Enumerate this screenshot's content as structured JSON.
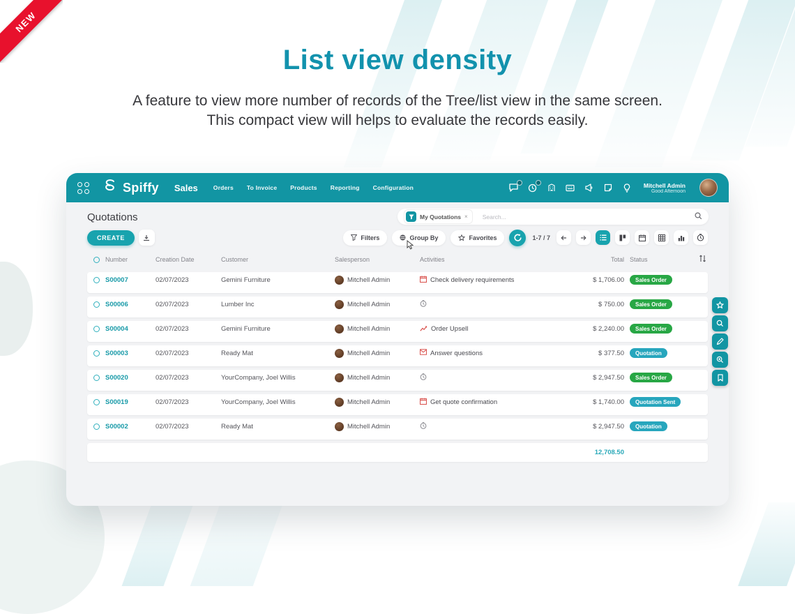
{
  "ribbon": {
    "label": "NEW"
  },
  "hero": {
    "title": "List view density",
    "desc1": "A feature to view more number of records of the Tree/list view in the same screen.",
    "desc2": "This compact view will helps to evaluate the records easily."
  },
  "app": {
    "header": {
      "brand": "Spiffy",
      "module": "Sales",
      "nav": [
        "Orders",
        "To Invoice",
        "Products",
        "Reporting",
        "Configuration"
      ],
      "icons": [
        "chat-icon",
        "clock-icon",
        "building-icon",
        "keyboard-icon",
        "announcement-icon",
        "note-icon",
        "bulb-icon"
      ],
      "user": {
        "name": "Mitchell Admin",
        "greeting": "Good Afternoon"
      }
    },
    "breadcrumb": {
      "title": "Quotations"
    },
    "search": {
      "filter_tag": "My Quotations",
      "filter_remove": "×",
      "placeholder": "Search..."
    },
    "toolbar": {
      "create_label": "CREATE",
      "filters_label": "Filters",
      "group_by_label": "Group By",
      "favorites_label": "Favorites",
      "pager": "1-7 / 7",
      "view_switcher": [
        "list-view",
        "kanban-view",
        "calendar-view",
        "pivot-view",
        "graph-view",
        "activity-view"
      ]
    },
    "table": {
      "headers": {
        "number": "Number",
        "date": "Creation Date",
        "customer": "Customer",
        "salesperson": "Salesperson",
        "activities": "Activities",
        "total": "Total",
        "status": "Status"
      },
      "rows": [
        {
          "number": "S00007",
          "date": "02/07/2023",
          "customer": "Gemini Furniture",
          "salesperson": "Mitchell Admin",
          "activity_icon": "calendar",
          "activity": "Check delivery requirements",
          "total": "$ 1,706.00",
          "status": "Sales Order",
          "status_color": "green"
        },
        {
          "number": "S00006",
          "date": "02/07/2023",
          "customer": "Lumber Inc",
          "salesperson": "Mitchell Admin",
          "activity_icon": "clock",
          "activity": "",
          "total": "$ 750.00",
          "status": "Sales Order",
          "status_color": "green"
        },
        {
          "number": "S00004",
          "date": "02/07/2023",
          "customer": "Gemini Furniture",
          "salesperson": "Mitchell Admin",
          "activity_icon": "chart",
          "activity": "Order Upsell",
          "total": "$ 2,240.00",
          "status": "Sales Order",
          "status_color": "green"
        },
        {
          "number": "S00003",
          "date": "02/07/2023",
          "customer": "Ready Mat",
          "salesperson": "Mitchell Admin",
          "activity_icon": "envelope",
          "activity": "Answer questions",
          "total": "$ 377.50",
          "status": "Quotation",
          "status_color": "teal"
        },
        {
          "number": "S00020",
          "date": "02/07/2023",
          "customer": "YourCompany, Joel Willis",
          "salesperson": "Mitchell Admin",
          "activity_icon": "clock",
          "activity": "",
          "total": "$ 2,947.50",
          "status": "Sales Order",
          "status_color": "green"
        },
        {
          "number": "S00019",
          "date": "02/07/2023",
          "customer": "YourCompany, Joel Willis",
          "salesperson": "Mitchell Admin",
          "activity_icon": "calendar",
          "activity": "Get quote confirmation",
          "total": "$ 1,740.00",
          "status": "Quotation Sent",
          "status_color": "teal"
        },
        {
          "number": "S00002",
          "date": "02/07/2023",
          "customer": "Ready Mat",
          "salesperson": "Mitchell Admin",
          "activity_icon": "clock",
          "activity": "",
          "total": "$ 2,947.50",
          "status": "Quotation",
          "status_color": "teal"
        }
      ],
      "footer_total": "12,708.50"
    },
    "side_buttons": [
      "star-fab",
      "search-fab",
      "edit-fab",
      "zoom-fab",
      "bookmark-fab"
    ]
  },
  "colors": {
    "teal_header": "#1295a3",
    "teal_accent": "#18a3ae",
    "title_teal": "#1292ad",
    "badge_green": "#28a745",
    "badge_teal": "#27a6bd",
    "ribbon_red": "#e8112d"
  }
}
